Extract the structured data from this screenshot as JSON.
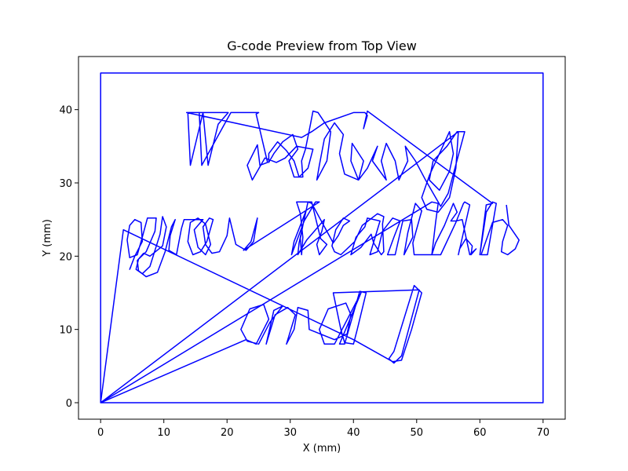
{
  "chart_data": {
    "type": "line",
    "title": "G-code Preview from Top View",
    "xlabel": "X (mm)",
    "ylabel": "Y (mm)",
    "xlim": [
      -3.5,
      73.5
    ],
    "ylim": [
      -2.25,
      47.25
    ],
    "xticks": [
      0,
      10,
      20,
      30,
      40,
      50,
      60,
      70
    ],
    "yticks": [
      0,
      10,
      20,
      30,
      40
    ],
    "grid": false,
    "line_color": "#0000ff",
    "series": [
      {
        "values": [
          [
            0,
            0
          ],
          [
            70,
            0
          ],
          [
            70,
            45
          ],
          [
            0,
            45
          ],
          [
            0,
            0
          ],
          [
            3.6,
            23.6
          ],
          [
            40,
            8.6
          ],
          [
            46.2,
            5.6
          ],
          [
            47.6,
            5.8
          ],
          [
            49.2,
            10
          ],
          [
            50.8,
            15
          ],
          [
            49.6,
            16
          ],
          [
            46.4,
            7
          ],
          [
            45.6,
            6
          ],
          [
            46.4,
            5.4
          ],
          [
            47.6,
            6.4
          ],
          [
            50.4,
            15.4
          ],
          [
            36.8,
            15
          ],
          [
            38,
            10
          ],
          [
            38.6,
            8.2
          ],
          [
            40,
            8
          ],
          [
            40.6,
            10
          ],
          [
            42,
            15
          ],
          [
            41,
            15.2
          ],
          [
            38.6,
            8
          ],
          [
            37.8,
            8
          ],
          [
            41.2,
            15
          ],
          [
            37,
            8
          ],
          [
            35.4,
            8
          ],
          [
            34.6,
            10
          ],
          [
            36,
            12.8
          ],
          [
            38.8,
            13.6
          ],
          [
            39.6,
            12
          ],
          [
            39,
            9.4
          ],
          [
            37,
            8.6
          ],
          [
            33,
            10
          ],
          [
            32.8,
            12.6
          ],
          [
            31.2,
            13
          ],
          [
            30.6,
            10
          ],
          [
            29.4,
            8
          ],
          [
            30.8,
            12
          ],
          [
            29.6,
            13
          ],
          [
            27.6,
            12
          ],
          [
            26.2,
            8
          ],
          [
            27.4,
            12.6
          ],
          [
            28.8,
            13.2
          ],
          [
            26.8,
            11
          ],
          [
            25,
            8
          ],
          [
            23.2,
            8.4
          ],
          [
            22.2,
            10
          ],
          [
            23.6,
            12.8
          ],
          [
            25.8,
            13.4
          ],
          [
            26.6,
            11.4
          ],
          [
            24.6,
            8
          ],
          [
            23,
            8.6
          ],
          [
            0,
            0
          ],
          [
            56.6,
            37
          ],
          [
            56.2,
            32
          ],
          [
            55.2,
            28
          ],
          [
            53.4,
            26
          ],
          [
            51.6,
            26.4
          ],
          [
            50.8,
            28
          ],
          [
            52,
            31
          ],
          [
            55.2,
            37
          ],
          [
            55.8,
            34
          ],
          [
            55.2,
            31.6
          ],
          [
            53.6,
            29
          ],
          [
            52,
            30.4
          ],
          [
            52.6,
            33
          ],
          [
            54.8,
            35
          ],
          [
            56.4,
            37
          ],
          [
            57.6,
            37
          ],
          [
            55,
            28.6
          ],
          [
            53.8,
            26.8
          ],
          [
            51.4,
            30.4
          ],
          [
            49.8,
            33
          ],
          [
            48.2,
            35
          ],
          [
            48.6,
            33
          ],
          [
            47.2,
            30.4
          ],
          [
            46.6,
            33
          ],
          [
            45.2,
            35.4
          ],
          [
            44.4,
            33
          ],
          [
            45.2,
            30.4
          ],
          [
            43,
            33
          ],
          [
            43.8,
            35
          ],
          [
            42.2,
            32
          ],
          [
            40.8,
            30.4
          ],
          [
            41.6,
            33
          ],
          [
            39.8,
            35.4
          ],
          [
            39.6,
            33
          ],
          [
            40.8,
            30.4
          ],
          [
            38.6,
            31.2
          ],
          [
            37.8,
            34
          ],
          [
            38.4,
            36.6
          ],
          [
            37,
            38.2
          ],
          [
            35.4,
            36
          ],
          [
            34.6,
            32.4
          ],
          [
            34.2,
            30.4
          ],
          [
            35.8,
            33
          ],
          [
            36.4,
            37
          ],
          [
            34.4,
            39.6
          ],
          [
            33.6,
            39.8
          ],
          [
            33.2,
            38
          ],
          [
            32.4,
            34.6
          ],
          [
            31.8,
            33
          ],
          [
            32,
            30.8
          ],
          [
            30.6,
            30.8
          ],
          [
            29.8,
            33
          ],
          [
            31.2,
            34.6
          ],
          [
            30.4,
            36.6
          ],
          [
            28.8,
            35.6
          ],
          [
            27.4,
            34
          ],
          [
            26.6,
            32.8
          ],
          [
            26.6,
            34
          ],
          [
            28,
            35.6
          ],
          [
            29.4,
            34.4
          ],
          [
            30.6,
            33
          ],
          [
            31.4,
            30.8
          ],
          [
            32.8,
            32
          ],
          [
            33.6,
            34.6
          ],
          [
            31,
            35
          ],
          [
            29.2,
            33.4
          ],
          [
            27.8,
            32.8
          ],
          [
            26,
            33.4
          ],
          [
            24,
            30.4
          ],
          [
            23.2,
            32.4
          ],
          [
            24.8,
            35.2
          ],
          [
            25.2,
            32.4
          ],
          [
            26.4,
            32.8
          ],
          [
            24.6,
            39.4
          ],
          [
            25,
            39.6
          ],
          [
            20.6,
            39.6
          ],
          [
            16,
            32.4
          ],
          [
            15.6,
            39.6
          ],
          [
            13.8,
            39.6
          ],
          [
            14.2,
            32.4
          ],
          [
            16.2,
            39.6
          ],
          [
            17,
            32.4
          ],
          [
            18.6,
            38
          ],
          [
            20.2,
            39.6
          ],
          [
            13.6,
            39.6
          ],
          [
            31.8,
            36.2
          ],
          [
            33.4,
            37
          ],
          [
            35.4,
            38.2
          ],
          [
            40,
            39.6
          ],
          [
            41.8,
            39.6
          ],
          [
            42.2,
            39.2
          ],
          [
            41.6,
            37.4
          ],
          [
            42.2,
            39.8
          ],
          [
            62,
            27.2
          ],
          [
            61,
            27
          ],
          [
            60,
            20.2
          ],
          [
            61,
            26
          ],
          [
            62,
            27.4
          ],
          [
            62.6,
            27.2
          ],
          [
            61.2,
            20.2
          ],
          [
            60.2,
            20.2
          ],
          [
            62,
            24.6
          ],
          [
            63.6,
            25
          ],
          [
            64.4,
            24.2
          ],
          [
            63.6,
            22
          ],
          [
            63.4,
            20.6
          ],
          [
            64.4,
            20.2
          ],
          [
            65.6,
            21
          ],
          [
            66.2,
            22.2
          ],
          [
            64.6,
            24.2
          ],
          [
            64.2,
            27
          ]
        ]
      },
      {
        "values": [
          [
            0,
            0
          ],
          [
            52.4,
            27.4
          ],
          [
            53.4,
            27.2
          ],
          [
            53,
            24.6
          ],
          [
            52.4,
            20.2
          ],
          [
            53.8,
            20.2
          ],
          [
            56.2,
            24.6
          ],
          [
            57.4,
            27.2
          ],
          [
            57.6,
            27.4
          ],
          [
            58.4,
            27
          ],
          [
            56.6,
            20.2
          ],
          [
            56.8,
            21
          ],
          [
            57.8,
            22.4
          ],
          [
            58.8,
            21.4
          ],
          [
            58.6,
            20.2
          ],
          [
            59.4,
            21
          ],
          [
            58.4,
            20.2
          ],
          [
            57.2,
            25
          ],
          [
            56.2,
            24.8
          ],
          [
            55.4,
            24.8
          ],
          [
            56.4,
            26
          ],
          [
            55.8,
            27.2
          ],
          [
            54.4,
            24.2
          ],
          [
            53,
            21.8
          ],
          [
            52.4,
            20.2
          ],
          [
            49.6,
            20.2
          ],
          [
            49.4,
            21.8
          ],
          [
            50.8,
            26.2
          ],
          [
            49.8,
            27.2
          ],
          [
            48.6,
            23.2
          ],
          [
            48,
            20.2
          ],
          [
            49.4,
            22.6
          ],
          [
            49.2,
            25
          ],
          [
            47.8,
            24.8
          ],
          [
            46.6,
            20.2
          ],
          [
            45.4,
            20.2
          ],
          [
            46.4,
            22.6
          ],
          [
            47.4,
            24.8
          ],
          [
            46.2,
            25.2
          ],
          [
            44.6,
            23.4
          ],
          [
            43.8,
            20.6
          ],
          [
            42.6,
            20.2
          ],
          [
            44.2,
            24.8
          ],
          [
            42.2,
            25.2
          ],
          [
            41.8,
            24
          ],
          [
            40.4,
            22.6
          ],
          [
            39.6,
            20.2
          ],
          [
            41.2,
            21.2
          ],
          [
            42.8,
            23
          ],
          [
            43.2,
            21.8
          ],
          [
            44.4,
            20.2
          ],
          [
            44.8,
            20.6
          ],
          [
            44.6,
            24.4
          ],
          [
            44.8,
            25.4
          ],
          [
            43.8,
            25.8
          ],
          [
            41.4,
            24.2
          ],
          [
            40.2,
            22
          ],
          [
            38,
            20.2
          ],
          [
            37,
            20.6
          ],
          [
            36.6,
            21.4
          ],
          [
            37.2,
            23.6
          ],
          [
            38.4,
            25.2
          ],
          [
            39.4,
            24.8
          ],
          [
            38.4,
            24.2
          ],
          [
            37.6,
            22.8
          ],
          [
            36.8,
            21.8
          ],
          [
            33.4,
            27.2
          ],
          [
            32.8,
            27.4
          ],
          [
            31.4,
            21.8
          ],
          [
            31.2,
            20.2
          ],
          [
            32.6,
            22.2
          ],
          [
            34.6,
            24.2
          ],
          [
            35.4,
            25
          ],
          [
            35,
            23.4
          ],
          [
            34.2,
            21.6
          ],
          [
            34.6,
            20.2
          ],
          [
            35.8,
            21.6
          ],
          [
            34.8,
            22.4
          ],
          [
            33.4,
            27.4
          ],
          [
            31,
            27.4
          ],
          [
            31.6,
            25.8
          ],
          [
            32,
            22.6
          ],
          [
            31.8,
            20.2
          ],
          [
            31.6,
            22.4
          ],
          [
            32.4,
            26
          ],
          [
            30.6,
            22
          ],
          [
            30.2,
            20.2
          ],
          [
            32.2,
            24.8
          ],
          [
            34,
            27.4
          ],
          [
            34.6,
            27.4
          ],
          [
            22.6,
            20.8
          ],
          [
            23.8,
            22
          ],
          [
            24.8,
            25.2
          ],
          [
            24.2,
            22
          ],
          [
            23,
            20.8
          ],
          [
            21.4,
            21.6
          ],
          [
            20.4,
            25.2
          ],
          [
            20,
            22.8
          ],
          [
            18.8,
            20.6
          ],
          [
            17.6,
            20.4
          ],
          [
            16.6,
            21.6
          ],
          [
            16.2,
            24
          ],
          [
            17.2,
            25.2
          ],
          [
            17.8,
            25
          ],
          [
            16.8,
            22
          ],
          [
            15.8,
            20.6
          ],
          [
            14.6,
            20.2
          ],
          [
            13.8,
            22
          ],
          [
            14.2,
            24.6
          ],
          [
            15.4,
            25.2
          ],
          [
            16.6,
            24.4
          ],
          [
            17.4,
            21.6
          ],
          [
            16.6,
            20.2
          ],
          [
            15.4,
            21.2
          ],
          [
            14.8,
            23.6
          ],
          [
            16.2,
            25
          ],
          [
            13.2,
            25
          ],
          [
            12.8,
            23.8
          ],
          [
            12,
            20.2
          ],
          [
            10.8,
            20.8
          ],
          [
            11,
            22.8
          ],
          [
            11.8,
            25
          ],
          [
            11.2,
            24
          ],
          [
            10.2,
            20.6
          ],
          [
            9,
            17.8
          ],
          [
            7.2,
            17.2
          ],
          [
            6,
            18
          ],
          [
            5.8,
            19.4
          ],
          [
            6.8,
            20.4
          ],
          [
            7.8,
            20
          ],
          [
            9.8,
            21.4
          ],
          [
            10.4,
            24
          ],
          [
            9.8,
            25.4
          ],
          [
            9.4,
            23
          ],
          [
            7.8,
            18.6
          ],
          [
            6.6,
            17.6
          ],
          [
            5.6,
            18.2
          ],
          [
            6,
            19.6
          ],
          [
            7.2,
            20.6
          ],
          [
            8.6,
            23.4
          ],
          [
            8.8,
            25.2
          ],
          [
            7.4,
            25.2
          ],
          [
            6.6,
            22.6
          ],
          [
            5.8,
            20.2
          ],
          [
            4.6,
            19.8
          ],
          [
            4.2,
            22.2
          ],
          [
            4.6,
            24.2
          ],
          [
            5.4,
            25
          ],
          [
            6.4,
            24.6
          ],
          [
            6.6,
            22
          ],
          [
            5.4,
            20
          ],
          [
            4.6,
            18.2
          ],
          [
            4.8,
            18.6
          ]
        ]
      }
    ]
  }
}
